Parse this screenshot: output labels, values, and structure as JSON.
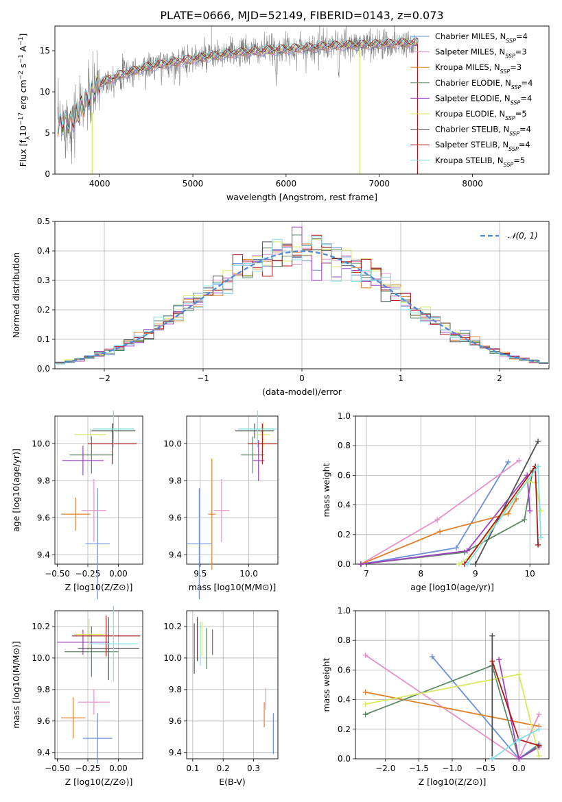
{
  "figure": {
    "title": "PLATE=0666, MJD=52149, FIBERID=0143, z=0.073"
  },
  "colors": {
    "series": [
      "#6a8fd9",
      "#e88fc8",
      "#e0802a",
      "#5a8a64",
      "#a040c0",
      "#d8e860",
      "#505050",
      "#b01818",
      "#80e0e8"
    ],
    "data_spectrum": "#808080",
    "normal_curve": "#4f88d8",
    "grid": "#b0b0b0"
  },
  "legend_entries": [
    {
      "name": "Chabrier MILES",
      "n": "4"
    },
    {
      "name": "Salpeter MILES",
      "n": "3"
    },
    {
      "name": "Kroupa MILES",
      "n": "3"
    },
    {
      "name": "Chabrier ELODIE",
      "n": "4"
    },
    {
      "name": "Salpeter ELODIE",
      "n": "4"
    },
    {
      "name": "Kroupa ELODIE",
      "n": "5"
    },
    {
      "name": "Chabrier STELIB",
      "n": "4"
    },
    {
      "name": "Salpeter STELIB",
      "n": "4"
    },
    {
      "name": "Kroupa STELIB",
      "n": "5"
    }
  ],
  "legend_n_prefix": "N",
  "legend_n_sub": "SSP",
  "chart_data": [
    {
      "id": "spectrum",
      "type": "line",
      "xlabel": "wavelength [Angstrom, rest frame]",
      "ylabel": "Flux [f",
      "ylabel_parts": [
        "Flux [f",
        "λ",
        "10",
        "−17",
        " erg cm",
        "−2",
        " s",
        "−1",
        " A",
        "−1",
        "]"
      ],
      "xlim": [
        3520,
        8820
      ],
      "ylim": [
        0,
        18
      ],
      "xticks": [
        4000,
        5000,
        6000,
        7000,
        8000
      ],
      "yticks": [
        0,
        5,
        10,
        15
      ],
      "continuum_x": [
        3550,
        3700,
        3900,
        4000,
        4200,
        4500,
        5000,
        5500,
        6000,
        6500,
        7000,
        7400
      ],
      "continuum_y": [
        6.0,
        6.5,
        9.5,
        11.0,
        12.0,
        13.0,
        14.0,
        14.8,
        15.2,
        15.6,
        15.8,
        16.0
      ],
      "x_range": [
        3550,
        7420
      ],
      "grid": false
    },
    {
      "id": "residuals",
      "type": "line",
      "xlabel": "(data-model)/error",
      "ylabel": "Normed distribution",
      "xlim": [
        -2.5,
        2.5
      ],
      "ylim": [
        0,
        0.5
      ],
      "xticks": [
        -2,
        -1,
        0,
        1,
        2
      ],
      "yticks": [
        0.0,
        0.1,
        0.2,
        0.3,
        0.4,
        0.5
      ],
      "legend": "𝒩(0, 1)",
      "normal_mean": 0,
      "normal_sigma": 1,
      "bin_width": 0.1,
      "grid": true
    },
    {
      "id": "age_vs_Z",
      "type": "scatter",
      "xlabel": "Z [log10(Z/Z⊙)]",
      "ylabel": "age  [log10(age/yr)]",
      "xlim": [
        -0.52,
        0.2
      ],
      "ylim": [
        9.35,
        10.15
      ],
      "xticks": [
        -0.5,
        -0.25,
        0.0
      ],
      "yticks": [
        9.4,
        9.6,
        9.8,
        10.0
      ],
      "points": [
        {
          "x": -0.17,
          "xerr": 0.1,
          "y": 9.46,
          "yerr": 0.3
        },
        {
          "x": -0.2,
          "xerr": 0.1,
          "y": 9.64,
          "yerr": 0.17
        },
        {
          "x": -0.35,
          "xerr": 0.12,
          "y": 9.62,
          "yerr": 0.09
        },
        {
          "x": -0.22,
          "xerr": 0.18,
          "y": 9.94,
          "yerr": 0.1
        },
        {
          "x": -0.29,
          "xerr": 0.17,
          "y": 9.91,
          "yerr": 0.08
        },
        {
          "x": -0.23,
          "xerr": 0.13,
          "y": 10.05,
          "yerr": 0.03
        },
        {
          "x": -0.04,
          "xerr": 0.18,
          "y": 10.07,
          "yerr": 0.04
        },
        {
          "x": -0.05,
          "xerr": 0.2,
          "y": 10.0,
          "yerr": 0.11
        },
        {
          "x": -0.04,
          "xerr": 0.17,
          "y": 10.08,
          "yerr": 0.1
        }
      ],
      "grid": true
    },
    {
      "id": "age_vs_mass",
      "type": "scatter",
      "xlabel": "mass [log10(M/M⊙)]",
      "ylabel": "",
      "xlim": [
        9.36,
        10.3
      ],
      "ylim": [
        9.35,
        10.15
      ],
      "xticks": [
        9.5,
        10.0
      ],
      "yticks": [
        9.4,
        9.6,
        9.8,
        10.0
      ],
      "points": [
        {
          "x": 9.49,
          "xerr": 0.13,
          "y": 9.46,
          "yerr": 0.3
        },
        {
          "x": 9.72,
          "xerr": 0.08,
          "y": 9.64,
          "yerr": 0.17
        },
        {
          "x": 9.62,
          "xerr": 0.04,
          "y": 9.62,
          "yerr": 0.3
        },
        {
          "x": 10.04,
          "xerr": 0.12,
          "y": 9.94,
          "yerr": 0.1
        },
        {
          "x": 10.1,
          "xerr": 0.06,
          "y": 9.91,
          "yerr": 0.11
        },
        {
          "x": 10.15,
          "xerr": 0.07,
          "y": 10.05,
          "yerr": 0.07
        },
        {
          "x": 10.06,
          "xerr": 0.2,
          "y": 10.07,
          "yerr": 0.04
        },
        {
          "x": 10.14,
          "xerr": 0.15,
          "y": 10.0,
          "yerr": 0.11
        },
        {
          "x": 10.09,
          "xerr": 0.2,
          "y": 10.08,
          "yerr": 0.1
        }
      ],
      "grid": true
    },
    {
      "id": "massweight_vs_age",
      "type": "line",
      "xlabel": "age  [log10(age/yr)]",
      "ylabel": "mass weight",
      "xlim": [
        6.8,
        10.35
      ],
      "ylim": [
        0,
        1
      ],
      "xticks": [
        7,
        8,
        9,
        10
      ],
      "yticks": [
        0.0,
        0.2,
        0.4,
        0.6,
        0.8,
        1.0
      ],
      "series": [
        {
          "x": [
            6.9,
            8.65,
            9.6
          ],
          "y": [
            0.0,
            0.11,
            0.69
          ]
        },
        {
          "x": [
            6.9,
            8.3,
            9.8
          ],
          "y": [
            0.0,
            0.3,
            0.7
          ]
        },
        {
          "x": [
            6.9,
            8.35,
            9.6,
            9.75
          ],
          "y": [
            0.0,
            0.22,
            0.34,
            0.44
          ]
        },
        {
          "x": [
            6.9,
            8.8,
            9.9,
            10.05
          ],
          "y": [
            0.0,
            0.08,
            0.3,
            0.63
          ]
        },
        {
          "x": [
            6.9,
            8.85,
            9.95,
            10.0
          ],
          "y": [
            0.0,
            0.09,
            0.6,
            0.36
          ]
        },
        {
          "x": [
            8.7,
            8.9,
            9.95,
            10.1,
            10.2
          ],
          "y": [
            0.0,
            0.05,
            0.56,
            0.55,
            0.36
          ]
        },
        {
          "x": [
            9.0,
            10.15
          ],
          "y": [
            0.0,
            0.83
          ]
        },
        {
          "x": [
            8.8,
            10.1,
            10.15
          ],
          "y": [
            0.0,
            0.66,
            0.13
          ]
        },
        {
          "x": [
            8.85,
            10.15,
            10.2
          ],
          "y": [
            0.0,
            0.66,
            0.18
          ]
        }
      ],
      "grid": true
    },
    {
      "id": "mass_vs_Z",
      "type": "scatter",
      "xlabel": "Z [log10(Z/Z⊙)]",
      "ylabel": "mass [log10(M/M⊙)]",
      "xlim": [
        -0.52,
        0.2
      ],
      "ylim": [
        9.36,
        10.3
      ],
      "xticks": [
        -0.5,
        -0.25,
        0.0
      ],
      "yticks": [
        9.4,
        9.6,
        9.8,
        10.0,
        10.2
      ],
      "points": [
        {
          "x": -0.17,
          "xerr": 0.12,
          "y": 9.49,
          "yerr": 0.16
        },
        {
          "x": -0.2,
          "xerr": 0.13,
          "y": 9.72,
          "yerr": 0.08
        },
        {
          "x": -0.37,
          "xerr": 0.1,
          "y": 9.62,
          "yerr": 0.13
        },
        {
          "x": -0.22,
          "xerr": 0.22,
          "y": 10.04,
          "yerr": 0.16
        },
        {
          "x": -0.29,
          "xerr": 0.21,
          "y": 10.1,
          "yerr": 0.08
        },
        {
          "x": -0.24,
          "xerr": 0.12,
          "y": 10.15,
          "yerr": 0.1
        },
        {
          "x": -0.08,
          "xerr": 0.25,
          "y": 10.06,
          "yerr": 0.2
        },
        {
          "x": -0.1,
          "xerr": 0.28,
          "y": 10.14,
          "yerr": 0.13
        },
        {
          "x": -0.04,
          "xerr": 0.2,
          "y": 10.09,
          "yerr": 0.24
        }
      ],
      "grid": true
    },
    {
      "id": "mass_vs_EBV",
      "type": "scatter",
      "xlabel": "E(B-V)",
      "ylabel": "",
      "xlim": [
        0.08,
        0.38
      ],
      "ylim": [
        9.36,
        10.3
      ],
      "xticks": [
        0.1,
        0.2,
        0.3
      ],
      "yticks": [
        9.4,
        9.6,
        9.8,
        10.0,
        10.2
      ],
      "points": [
        {
          "x": 0.365,
          "xerr": 0.0,
          "y": 9.52,
          "yerr": 0.13
        },
        {
          "x": 0.34,
          "xerr": 0.0,
          "y": 9.74,
          "yerr": 0.07
        },
        {
          "x": 0.335,
          "xerr": 0.0,
          "y": 9.64,
          "yerr": 0.08
        },
        {
          "x": 0.145,
          "xerr": 0.0,
          "y": 10.06,
          "yerr": 0.13
        },
        {
          "x": 0.165,
          "xerr": 0.0,
          "y": 10.1,
          "yerr": 0.08
        },
        {
          "x": 0.13,
          "xerr": 0.0,
          "y": 10.12,
          "yerr": 0.11
        },
        {
          "x": 0.105,
          "xerr": 0.0,
          "y": 10.06,
          "yerr": 0.16
        },
        {
          "x": 0.115,
          "xerr": 0.0,
          "y": 10.12,
          "yerr": 0.14
        },
        {
          "x": 0.125,
          "xerr": 0.0,
          "y": 10.09,
          "yerr": 0.14
        }
      ],
      "grid": true
    },
    {
      "id": "massweight_vs_Z",
      "type": "line",
      "xlabel": "Z [log10(Z/Z⊙)]",
      "ylabel": "mass weight",
      "xlim": [
        -2.45,
        0.45
      ],
      "ylim": [
        0,
        1
      ],
      "xticks": [
        -2.0,
        -1.5,
        -1.0,
        -0.5,
        0.0
      ],
      "yticks": [
        0.0,
        0.2,
        0.4,
        0.6,
        0.8,
        1.0
      ],
      "series": [
        {
          "x": [
            -1.3,
            0.0,
            0.3
          ],
          "y": [
            0.69,
            0.0,
            0.1
          ]
        },
        {
          "x": [
            -2.3,
            0.0,
            0.3
          ],
          "y": [
            0.7,
            0.0,
            0.3
          ]
        },
        {
          "x": [
            -2.3,
            0.3
          ],
          "y": [
            0.45,
            0.22
          ]
        },
        {
          "x": [
            -2.3,
            -0.4,
            0.0,
            0.3
          ],
          "y": [
            0.3,
            0.63,
            0.0,
            0.09
          ]
        },
        {
          "x": [
            -0.3,
            0.0,
            0.3
          ],
          "y": [
            0.67,
            0.0,
            0.08
          ]
        },
        {
          "x": [
            -2.3,
            0.0,
            0.3
          ],
          "y": [
            0.37,
            0.57,
            0.02
          ]
        },
        {
          "x": [
            -0.4,
            -0.4
          ],
          "y": [
            0.0,
            0.83
          ]
        },
        {
          "x": [
            -0.4,
            0.0,
            0.3
          ],
          "y": [
            0.66,
            0.13,
            0.09
          ]
        },
        {
          "x": [
            -0.4,
            0.0,
            0.3
          ],
          "y": [
            0.0,
            0.13,
            0.2
          ]
        }
      ],
      "grid": true
    }
  ]
}
